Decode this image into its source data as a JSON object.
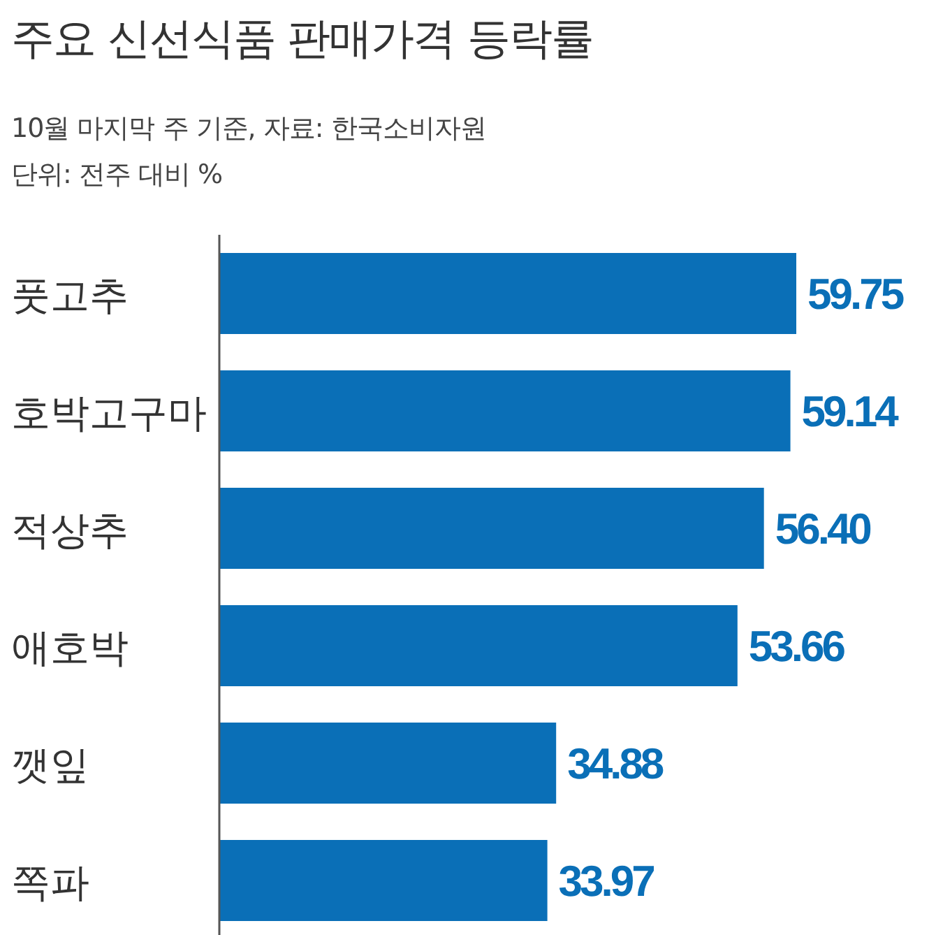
{
  "chart_data": {
    "type": "bar",
    "orientation": "horizontal",
    "title": "주요 신선식품 판매가격 등락률",
    "subtitle": "10월 마지막 주 기준, 자료: 한국소비자원\n단위: 전주 대비 %",
    "categories": [
      "풋고추",
      "호박고구마",
      "적상추",
      "애호박",
      "깻잎",
      "쪽파"
    ],
    "values": [
      59.75,
      59.14,
      56.4,
      53.66,
      34.88,
      33.97
    ],
    "value_labels": [
      "59.75",
      "59.14",
      "56.40",
      "53.66",
      "34.88",
      "33.97"
    ],
    "color": "#0a6fb7",
    "data_labels": true
  }
}
